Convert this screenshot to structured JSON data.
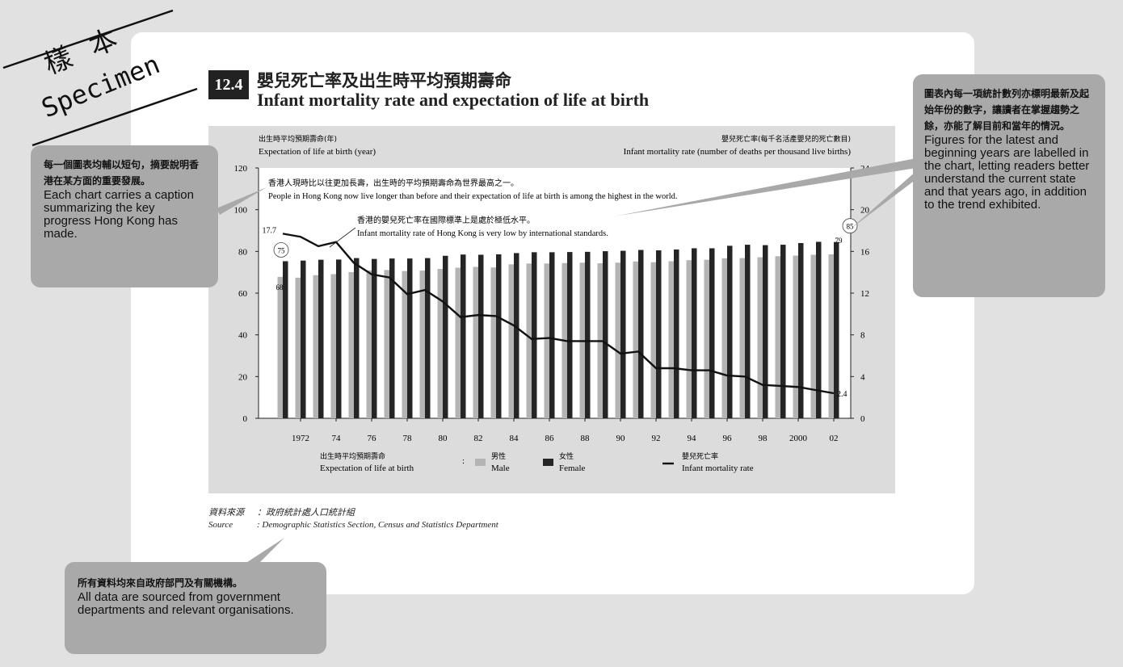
{
  "stamp": {
    "zh": "樣本",
    "en": "Specimen"
  },
  "header": {
    "number": "12.4",
    "title_zh": "嬰兒死亡率及出生時平均預期壽命",
    "title_en": "Infant mortality rate and expectation of life at birth"
  },
  "chart_data": {
    "type": "bar",
    "title": "",
    "left_axis_label_zh": "出生時平均預期壽命(年)",
    "left_axis_label_en": "Expectation of life at birth (year)",
    "right_axis_label_zh": "嬰兒死亡率(每千名活產嬰兒的死亡數目)",
    "right_axis_label_en": "Infant mortality rate (number of deaths per thousand live births)",
    "ylim_left": [
      0,
      120
    ],
    "yticks_left": [
      0,
      20,
      40,
      60,
      80,
      100,
      120
    ],
    "ylim_right": [
      0,
      24
    ],
    "yticks_right": [
      0,
      4,
      8,
      12,
      16,
      20,
      24
    ],
    "x": [
      1971,
      1972,
      1973,
      1974,
      1975,
      1976,
      1977,
      1978,
      1979,
      1980,
      1981,
      1982,
      1983,
      1984,
      1985,
      1986,
      1987,
      1988,
      1989,
      1990,
      1991,
      1992,
      1993,
      1994,
      1995,
      1996,
      1997,
      1998,
      1999,
      2000,
      2001,
      2002
    ],
    "xtick_labels": [
      "1972",
      "74",
      "76",
      "78",
      "80",
      "82",
      "84",
      "86",
      "88",
      "90",
      "92",
      "94",
      "96",
      "98",
      "2000",
      "02"
    ],
    "xtick_years": [
      1972,
      1974,
      1976,
      1978,
      1980,
      1982,
      1984,
      1986,
      1988,
      1990,
      1992,
      1994,
      1996,
      1998,
      2000,
      2002
    ],
    "series": [
      {
        "name_zh": "男性",
        "name": "Male",
        "axis": "left",
        "kind": "bar",
        "color": "#b4b4b4",
        "values": [
          67.8,
          67.4,
          68.6,
          69.1,
          70.1,
          70.9,
          71.1,
          70.6,
          70.8,
          71.6,
          72.2,
          72.6,
          72.3,
          73.8,
          74.2,
          74.2,
          74.4,
          74.6,
          74.3,
          74.6,
          75.2,
          74.8,
          75.3,
          75.8,
          76.0,
          76.7,
          76.8,
          77.2,
          77.7,
          78.0,
          78.4,
          78.6
        ]
      },
      {
        "name_zh": "女性",
        "name": "Female",
        "axis": "left",
        "kind": "bar",
        "color": "#252525",
        "values": [
          75.3,
          75.6,
          76.0,
          76.1,
          76.8,
          76.4,
          76.6,
          76.6,
          76.8,
          77.9,
          78.5,
          78.4,
          78.6,
          79.2,
          79.6,
          79.6,
          79.7,
          79.8,
          80.1,
          80.3,
          80.7,
          80.5,
          80.9,
          81.5,
          81.5,
          82.7,
          83.2,
          83.0,
          83.2,
          84.0,
          84.6,
          84.5
        ]
      },
      {
        "name_zh": "嬰兒死亡率",
        "name": "Infant mortality rate",
        "axis": "right",
        "kind": "line",
        "color": "#111111",
        "values": [
          17.7,
          17.4,
          16.5,
          16.9,
          14.9,
          13.8,
          13.5,
          11.9,
          12.3,
          11.2,
          9.7,
          9.9,
          9.8,
          8.9,
          7.6,
          7.7,
          7.4,
          7.4,
          7.4,
          6.2,
          6.4,
          4.8,
          4.8,
          4.6,
          4.6,
          4.1,
          4.0,
          3.2,
          3.1,
          3.0,
          2.7,
          2.4
        ]
      }
    ],
    "data_labels": [
      {
        "text": "17.7",
        "series": "Infant mortality rate",
        "x": 1971
      },
      {
        "text": "75",
        "series": "Female",
        "x": 1971
      },
      {
        "text": "68",
        "series": "Male",
        "x": 1971
      },
      {
        "text": "85",
        "series": "Female",
        "x": 2002
      },
      {
        "text": "79",
        "series": "Male",
        "x": 2002
      },
      {
        "text": "2.4",
        "series": "Infant mortality rate",
        "x": 2002
      }
    ],
    "annotations": [
      {
        "zh": "香港人現時比以往更加長壽，出生時的平均預期壽命為世界最高之一。",
        "en": "People in Hong Kong now live longer than before and their expectation of life at birth is among the highest in the world."
      },
      {
        "zh": "香港的嬰兒死亡率在國際標準上是處於極低水平。",
        "en": "Infant mortality rate of Hong Kong is very low by international standards."
      }
    ],
    "legend": {
      "group_zh": "出生時平均預期壽命",
      "group_en": "Expectation of life at birth",
      "placement": "bottom"
    },
    "grid": false
  },
  "source": {
    "label_zh": "資料來源",
    "label_en": "Source",
    "text_zh": "：政府統計處人口統計組",
    "text_en": ": Demographic Statistics Section, Census and Statistics Department"
  },
  "callouts": {
    "caption": {
      "zh": "每一個圖表均輔以短句，摘要說明香港在某方面的重要發展。",
      "en": "Each chart carries a caption summarizing the key progress Hong Kong has made."
    },
    "labels": {
      "zh": "圖表內每一項統計數列亦標明最新及起始年份的數字，讓讀者在掌握趨勢之餘，亦能了解目前和當年的情況。",
      "en": "Figures for the latest and beginning years are labelled in the chart, letting readers better understand the current state and that years ago, in addition to the trend exhibited."
    },
    "sources": {
      "zh": "所有資料均來自政府部門及有關機構。",
      "en": "All data are sourced from government departments and relevant organisations."
    }
  }
}
